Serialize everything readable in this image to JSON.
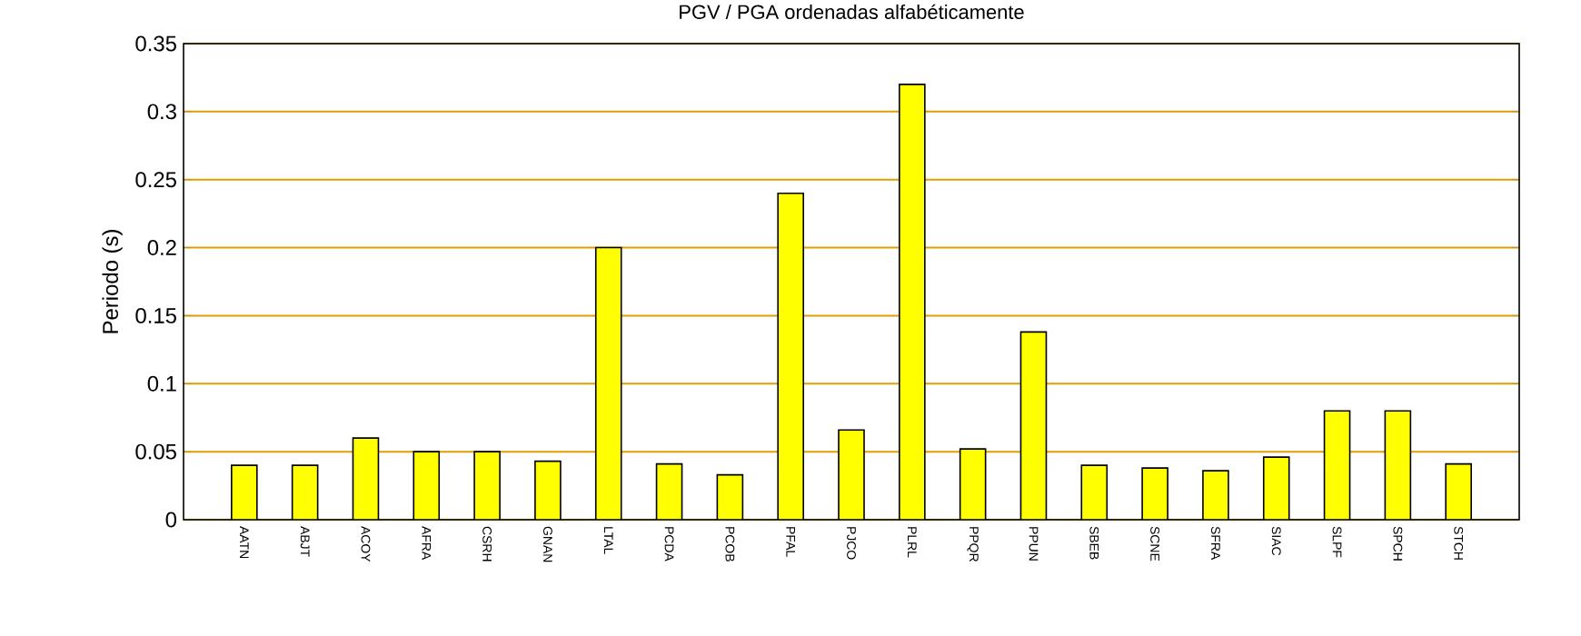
{
  "chart_data": {
    "type": "bar",
    "title": "PGV / PGA ordenadas alfabéticamente",
    "ylabel": "Periodo (s)",
    "categories": [
      "AATN",
      "ABJT",
      "ACOY",
      "AFRA",
      "CSRH",
      "GNAN",
      "LTAL",
      "PCDA",
      "PCOB",
      "PFAL",
      "PJCO",
      "PLRL",
      "PPQR",
      "PPUN",
      "SBEB",
      "SCNE",
      "SFRA",
      "SIAC",
      "SLPF",
      "SPCH",
      "STCH"
    ],
    "values": [
      0.04,
      0.04,
      0.06,
      0.05,
      0.05,
      0.043,
      0.2,
      0.041,
      0.033,
      0.24,
      0.066,
      0.32,
      0.052,
      0.138,
      0.04,
      0.038,
      0.036,
      0.046,
      0.08,
      0.08,
      0.041
    ],
    "color": "#ffff00",
    "ylim": [
      0,
      0.35
    ],
    "yticks": [
      0,
      0.05,
      0.1,
      0.15,
      0.2,
      0.25,
      0.3,
      0.35
    ],
    "grid": "y"
  }
}
